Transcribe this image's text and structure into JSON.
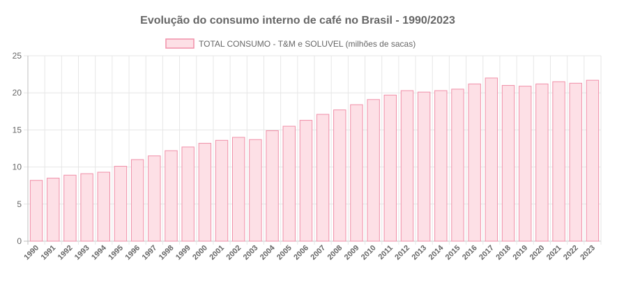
{
  "chart_data": {
    "type": "bar",
    "title": "Evolução do consumo interno de café no Brasil - 1990/2023",
    "xlabel": "",
    "ylabel": "",
    "ylim": [
      0,
      25
    ],
    "yticks": [
      0,
      5,
      10,
      15,
      20,
      25
    ],
    "grid": true,
    "legend_position": "top",
    "categories": [
      "1990",
      "1991",
      "1992",
      "1993",
      "1994",
      "1995",
      "1996",
      "1997",
      "1998",
      "1999",
      "2000",
      "2001",
      "2002",
      "2003",
      "2004",
      "2005",
      "2006",
      "2007",
      "2008",
      "2009",
      "2010",
      "2011",
      "2012",
      "2013",
      "2014",
      "2015",
      "2016",
      "2017",
      "2018",
      "2019",
      "2020",
      "2021",
      "2022",
      "2023"
    ],
    "series": [
      {
        "name": "TOTAL CONSUMO - T&M e SOLUVEL (milhões de sacas)",
        "fill": "#fde0e6",
        "stroke": "#f08fa8",
        "values": [
          8.2,
          8.5,
          8.9,
          9.1,
          9.3,
          10.1,
          11.0,
          11.5,
          12.2,
          12.7,
          13.2,
          13.6,
          14.0,
          13.7,
          14.9,
          15.5,
          16.3,
          17.1,
          17.7,
          18.4,
          19.1,
          19.7,
          20.3,
          20.1,
          20.3,
          20.5,
          21.2,
          22.0,
          21.0,
          20.9,
          21.2,
          21.5,
          21.3,
          21.7
        ]
      }
    ]
  }
}
